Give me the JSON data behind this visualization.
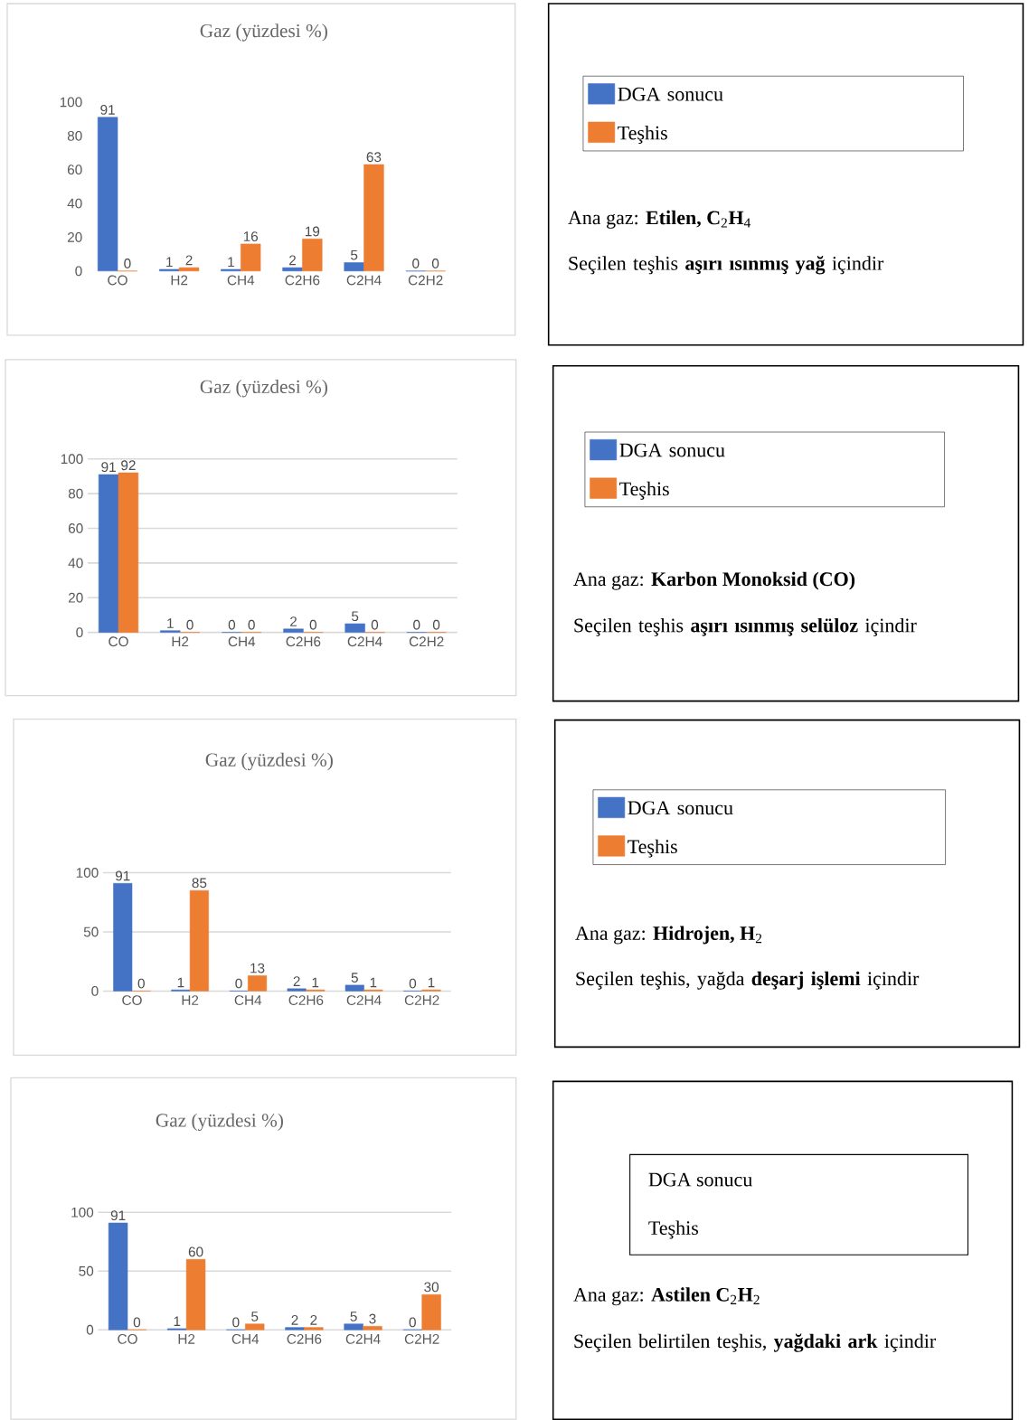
{
  "chart_data": [
    {
      "type": "bar",
      "title": "Gaz (yüzdesi %)",
      "categories": [
        "CO",
        "H2",
        "CH4",
        "C2H6",
        "C2H4",
        "C2H2"
      ],
      "series": [
        {
          "name": "DGA sonucu",
          "color": "#4472c4",
          "values": [
            91,
            1,
            1,
            2,
            5,
            0
          ]
        },
        {
          "name": "Teşhis",
          "color": "#ed7d31",
          "values": [
            0,
            2,
            16,
            19,
            63,
            0
          ]
        }
      ],
      "ylim": [
        0,
        100
      ],
      "yticks": [
        0,
        20,
        40,
        60,
        80,
        100
      ],
      "grid": false,
      "legend": "right",
      "data_labels": true,
      "annotations": [
        "Ana gaz: **Etilen, C**$_{2}$**H**$_{4}$",
        "Seçilen teşhis **aşırı ısınmış yağ** içindir"
      ]
    },
    {
      "type": "bar",
      "title": "Gaz (yüzdesi %)",
      "categories": [
        "CO",
        "H2",
        "CH4",
        "C2H6",
        "C2H4",
        "C2H2"
      ],
      "series": [
        {
          "name": "DGA sonucu",
          "color": "#4472c4",
          "values": [
            91,
            1,
            0,
            2,
            5,
            0
          ]
        },
        {
          "name": "Teşhis",
          "color": "#ed7d31",
          "values": [
            92,
            0,
            0,
            0,
            0,
            0
          ]
        }
      ],
      "ylim": [
        0,
        100
      ],
      "yticks": [
        0,
        20,
        40,
        60,
        80,
        100
      ],
      "grid": "y",
      "legend": "right",
      "data_labels": true,
      "annotations": [
        "Ana gaz: **Karbon Monoksid (CO)**",
        "Seçilen teşhis **aşırı ısınmış selüloz** içindir"
      ]
    },
    {
      "type": "bar",
      "title": "Gaz (yüzdesi %)",
      "categories": [
        "CO",
        "H2",
        "CH4",
        "C2H6",
        "C2H4",
        "C2H2"
      ],
      "series": [
        {
          "name": "DGA sonucu",
          "color": "#4472c4",
          "values": [
            91,
            1,
            0,
            2,
            5,
            0
          ]
        },
        {
          "name": "Teşhis",
          "color": "#ed7d31",
          "values": [
            0,
            85,
            13,
            1,
            1,
            1
          ]
        }
      ],
      "ylim": [
        0,
        100
      ],
      "yticks": [
        0,
        50,
        100
      ],
      "grid": "y",
      "legend": "right",
      "data_labels": true,
      "annotations": [
        "Ana gaz: **Hidrojen, H**$_{2}$",
        "Seçilen teşhis, yağda **deşarj işlemi** içindir"
      ]
    },
    {
      "type": "bar",
      "title": "Gaz (yüzdesi %)",
      "categories": [
        "CO",
        "H2",
        "CH4",
        "C2H6",
        "C2H4",
        "C2H2"
      ],
      "series": [
        {
          "color": "#4472c4",
          "values": [
            91,
            1,
            0,
            2,
            5,
            0
          ]
        },
        {
          "color": "#ed7d31",
          "values": [
            0,
            60,
            5,
            2,
            3,
            30
          ]
        }
      ],
      "ylim": [
        0,
        100
      ],
      "yticks": [
        0,
        50,
        100
      ],
      "grid": "y",
      "data_labels": true,
      "annotations": [
        "DGA sonucu",
        "Teşhis",
        "Ana gaz: **Astilen C**$_{2}$**H**$_{2}$",
        "Seçilen belirtilen teşhis, **yağdaki ark** içindir"
      ]
    }
  ]
}
